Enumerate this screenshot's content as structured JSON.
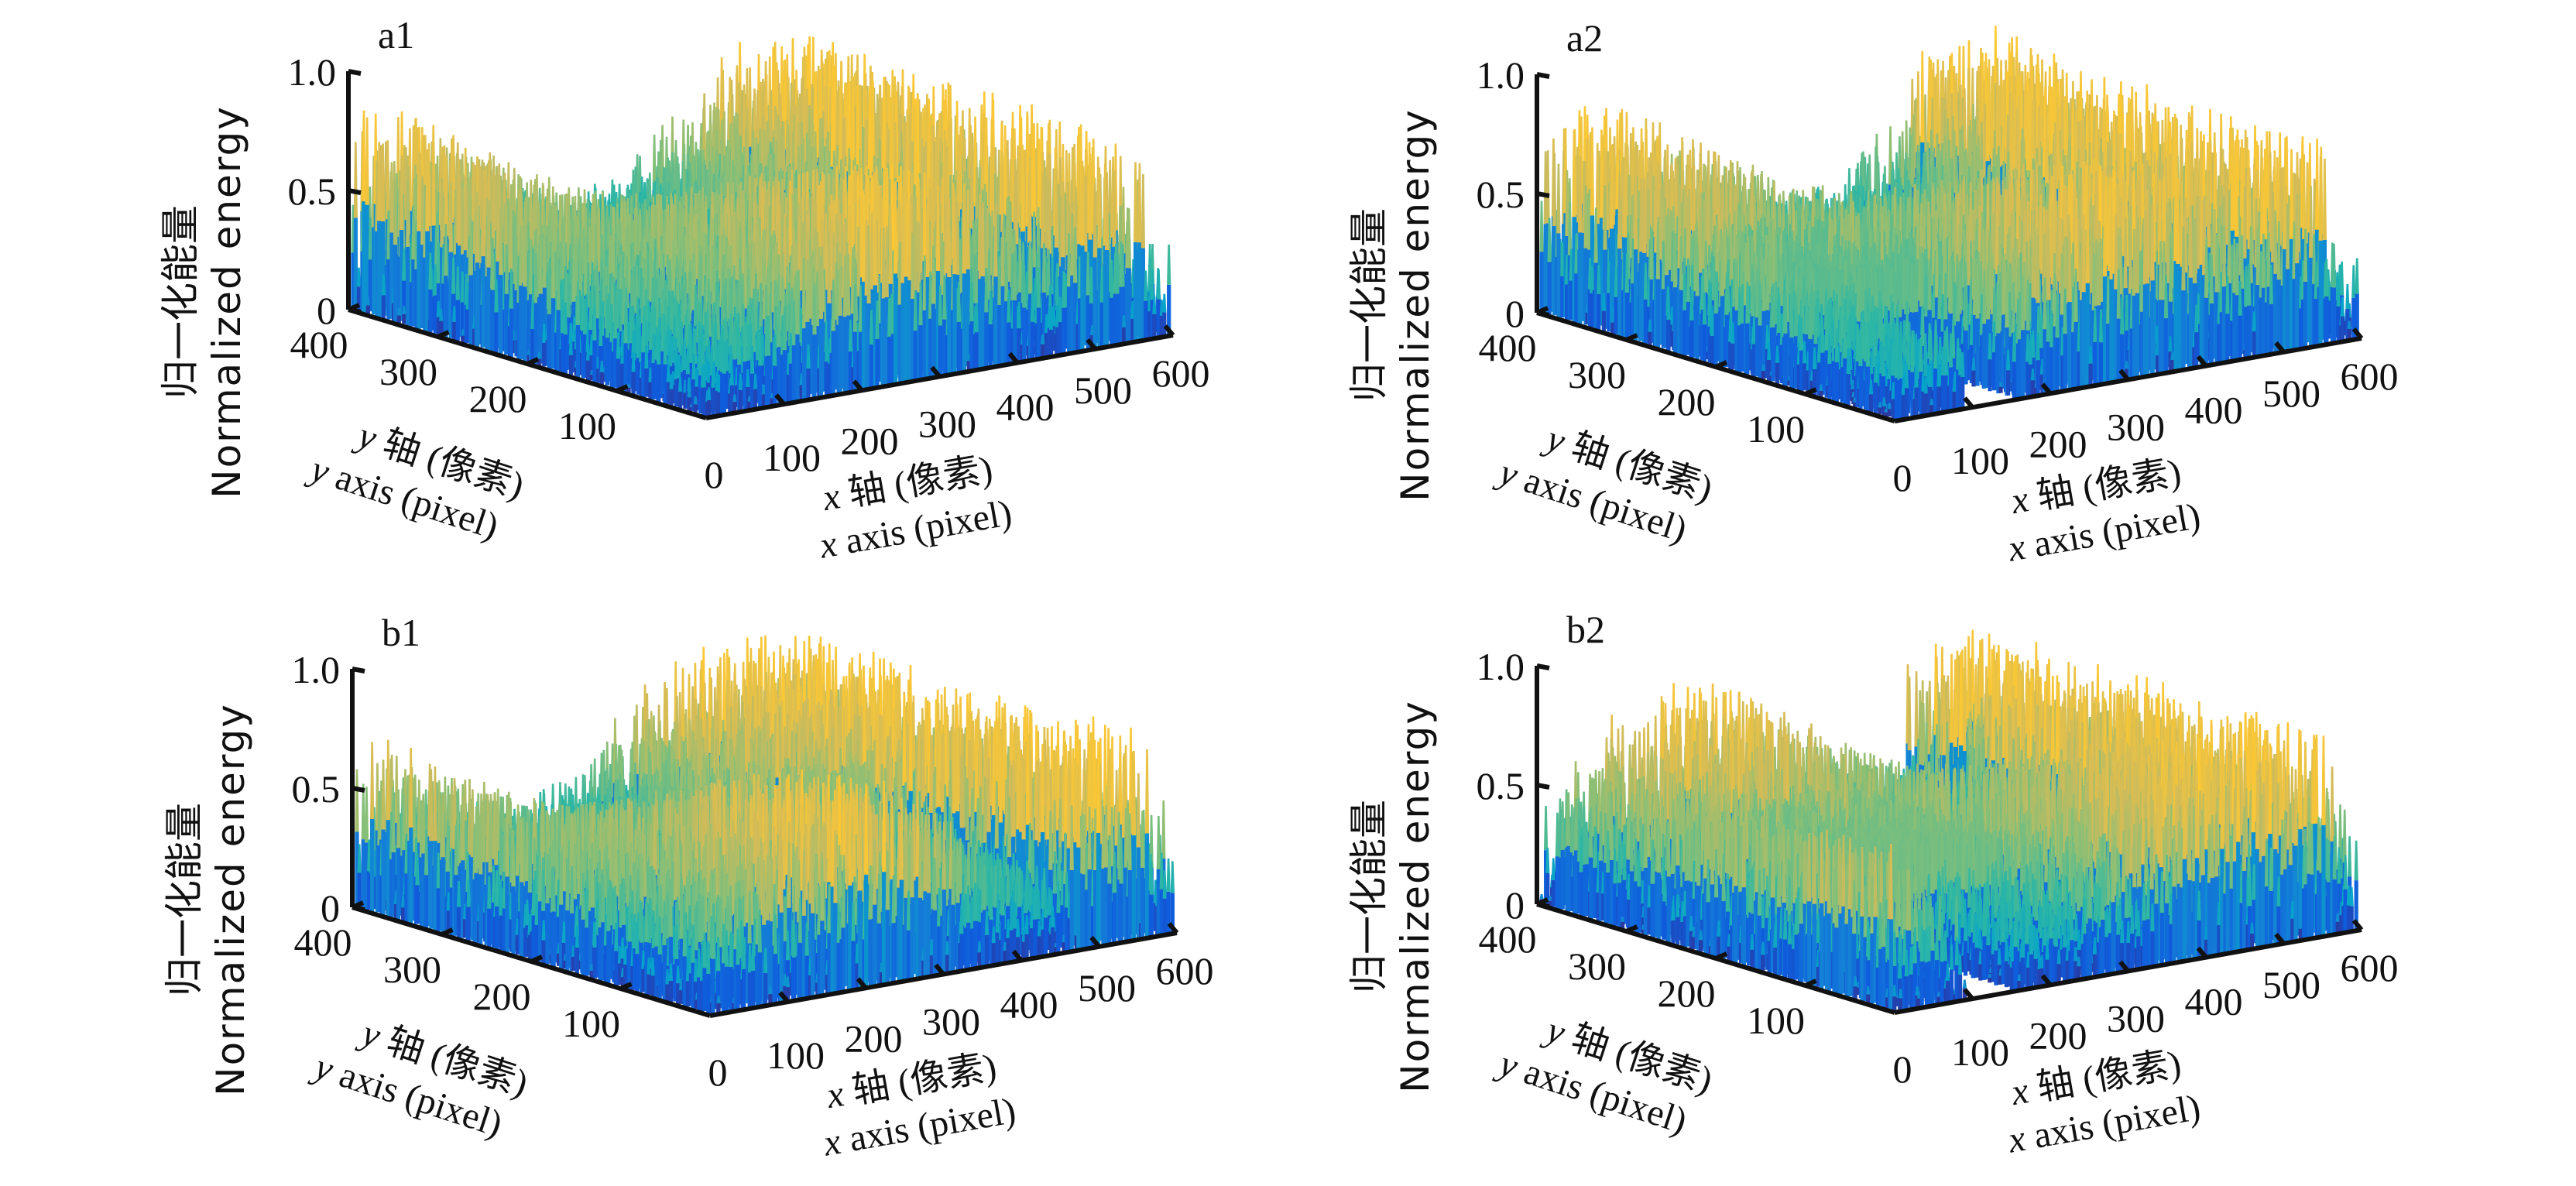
{
  "figure": {
    "colormap": {
      "name": "parula",
      "stops": [
        "#352a87",
        "#0f5cdd",
        "#1481d6",
        "#06a4ca",
        "#2eb7a4",
        "#87bf77",
        "#d1bb59",
        "#fec832",
        "#f9fb0e"
      ]
    },
    "axis_color": "#111111"
  },
  "chart_data": [
    {
      "id": "a1",
      "type": "surface3d",
      "panel_label": "a1",
      "zlabel_cn": "归一化能量",
      "zlabel_en": "Normalized energy",
      "xlabel_cn": "轴 (像素)",
      "xlabel_en": "axis (pixel)",
      "xlabel_var": "x",
      "ylabel_cn": "轴 (像素)",
      "ylabel_en": "axis (pixel)",
      "ylabel_var": "y",
      "xlim": [
        0,
        600
      ],
      "ylim": [
        0,
        400
      ],
      "zlim": [
        0,
        1.0
      ],
      "xticks": [
        "0",
        "100",
        "200",
        "300",
        "400",
        "500",
        "600"
      ],
      "yticks": [
        "100",
        "200",
        "300",
        "400"
      ],
      "zticks": [
        "0",
        "0.5",
        "1.0"
      ],
      "grid": false,
      "description": "Dense spiky normalized-energy surface; mostly 0.3–0.9 with yellow-orange plateau near x≈480–560.",
      "seed": 11,
      "hole": null,
      "plateau": null
    },
    {
      "id": "a2",
      "type": "surface3d",
      "panel_label": "a2",
      "zlabel_cn": "归一化能量",
      "zlabel_en": "Normalized energy",
      "xlabel_cn": "轴 (像素)",
      "xlabel_en": "axis (pixel)",
      "xlabel_var": "x",
      "ylabel_cn": "轴 (像素)",
      "ylabel_en": "axis (pixel)",
      "ylabel_var": "y",
      "xlim": [
        0,
        600
      ],
      "ylim": [
        0,
        400
      ],
      "zlim": [
        0,
        1.0
      ],
      "xticks": [
        "0",
        "100",
        "200",
        "300",
        "400",
        "500",
        "600"
      ],
      "yticks": [
        "100",
        "200",
        "300",
        "400"
      ],
      "zticks": [
        "0",
        "0.5",
        "1.0"
      ],
      "grid": false,
      "description": "Spiky surface with low-energy gap near x≈100–150 at front and flat green plateau (~0.4) behind it.",
      "seed": 23,
      "hole": [
        95,
        155
      ],
      "plateau": 0.42
    },
    {
      "id": "b1",
      "type": "surface3d",
      "panel_label": "b1",
      "zlabel_cn": "归一化能量",
      "zlabel_en": "Normalized energy",
      "xlabel_cn": "轴 (像素)",
      "xlabel_en": "axis (pixel)",
      "xlabel_var": "x",
      "ylabel_cn": "轴 (像素)",
      "ylabel_en": "axis (pixel)",
      "ylabel_var": "y",
      "xlim": [
        0,
        600
      ],
      "ylim": [
        0,
        400
      ],
      "zlim": [
        0,
        1.0
      ],
      "xticks": [
        "0",
        "100",
        "200",
        "300",
        "400",
        "500",
        "600"
      ],
      "yticks": [
        "100",
        "200",
        "300",
        "400"
      ],
      "zticks": [
        "0",
        "0.5",
        "1.0"
      ],
      "grid": false,
      "description": "Spiky surface similar to a1 with a low trough at the left edge and yellow plateau near x≈480–560.",
      "seed": 37,
      "hole": null,
      "plateau": null
    },
    {
      "id": "b2",
      "type": "surface3d",
      "panel_label": "b2",
      "zlabel_cn": "归一化能量",
      "zlabel_en": "Normalized energy",
      "xlabel_cn": "轴 (像素)",
      "xlabel_en": "axis (pixel)",
      "xlabel_var": "x",
      "ylabel_cn": "轴 (像素)",
      "ylabel_en": "axis (pixel)",
      "ylabel_var": "y",
      "xlim": [
        0,
        600
      ],
      "ylim": [
        0,
        400
      ],
      "zlim": [
        0,
        1.0
      ],
      "xticks": [
        "0",
        "100",
        "200",
        "300",
        "400",
        "500",
        "600"
      ],
      "yticks": [
        "100",
        "200",
        "300",
        "400"
      ],
      "zticks": [
        "0",
        "0.5",
        "1.0"
      ],
      "grid": false,
      "description": "Similar to a2 with a larger green plateau (~0.45) spanning the middle region and a gap near x≈100–150.",
      "seed": 53,
      "hole": [
        95,
        155
      ],
      "plateau": 0.46
    }
  ]
}
